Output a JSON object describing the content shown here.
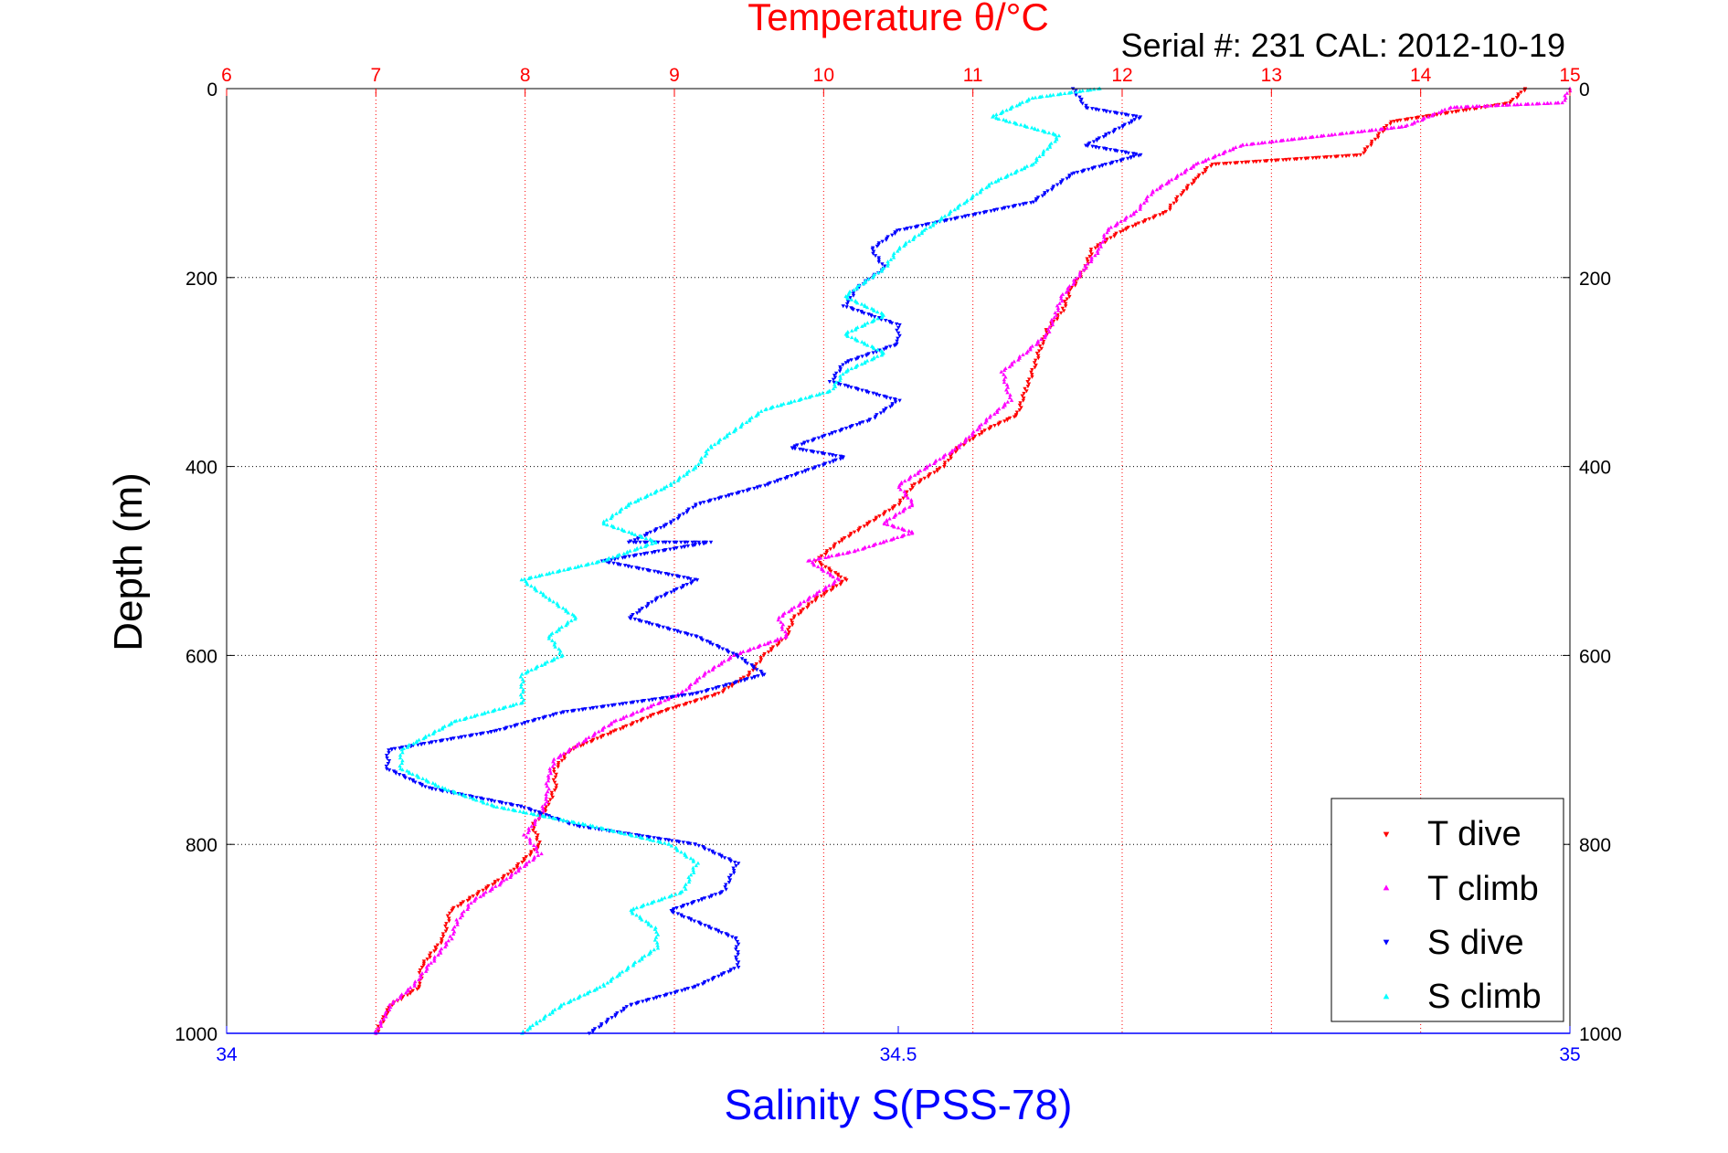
{
  "chart_data": {
    "type": "scatter",
    "title": "Temperature θ/°C",
    "subtitle": "Serial #: 231  CAL: 2012-10-19",
    "ylabel": "Depth (m)",
    "xlabel": "Salinity S(PSS-78)",
    "top_axis": {
      "label": "Temperature θ/°C",
      "range": [
        6,
        15
      ],
      "ticks": [
        "6",
        "7",
        "8",
        "9",
        "10",
        "11",
        "12",
        "13",
        "14",
        "15"
      ],
      "color": "#ff0000"
    },
    "bottom_axis": {
      "label": "Salinity S(PSS-78)",
      "range": [
        34,
        35
      ],
      "ticks": [
        "34",
        "34.5",
        "35"
      ],
      "color": "#0000ff"
    },
    "y_axis": {
      "range": [
        0,
        1000
      ],
      "reversed": true,
      "ticks": [
        "0",
        "200",
        "400",
        "600",
        "800",
        "1000"
      ]
    },
    "grid": true,
    "legend_position": "bottom-right",
    "legend": [
      {
        "label": "T dive",
        "color": "#ff0000",
        "marker": "triangle-down"
      },
      {
        "label": "T climb",
        "color": "#ff00ff",
        "marker": "triangle-up"
      },
      {
        "label": "S dive",
        "color": "#0000ff",
        "marker": "triangle-down"
      },
      {
        "label": "S climb",
        "color": "#00ffff",
        "marker": "triangle-up"
      }
    ],
    "series": [
      {
        "name": "T dive",
        "axis": "temperature",
        "color": "#ff0000",
        "points": [
          [
            14.7,
            0
          ],
          [
            14.6,
            15
          ],
          [
            13.8,
            35
          ],
          [
            13.6,
            70
          ],
          [
            12.6,
            80
          ],
          [
            12.5,
            95
          ],
          [
            12.4,
            110
          ],
          [
            12.3,
            130
          ],
          [
            12.0,
            150
          ],
          [
            11.8,
            170
          ],
          [
            11.75,
            190
          ],
          [
            11.65,
            215
          ],
          [
            11.6,
            235
          ],
          [
            11.5,
            255
          ],
          [
            11.45,
            275
          ],
          [
            11.4,
            300
          ],
          [
            11.35,
            320
          ],
          [
            11.3,
            345
          ],
          [
            11.1,
            360
          ],
          [
            10.9,
            380
          ],
          [
            10.8,
            400
          ],
          [
            10.6,
            420
          ],
          [
            10.5,
            440
          ],
          [
            10.3,
            460
          ],
          [
            10.1,
            480
          ],
          [
            9.95,
            500
          ],
          [
            10.15,
            520
          ],
          [
            9.95,
            540
          ],
          [
            9.8,
            560
          ],
          [
            9.75,
            580
          ],
          [
            9.6,
            600
          ],
          [
            9.5,
            620
          ],
          [
            9.3,
            640
          ],
          [
            8.9,
            660
          ],
          [
            8.6,
            680
          ],
          [
            8.3,
            700
          ],
          [
            8.2,
            720
          ],
          [
            8.2,
            740
          ],
          [
            8.15,
            760
          ],
          [
            8.05,
            780
          ],
          [
            8.1,
            800
          ],
          [
            7.9,
            830
          ],
          [
            7.7,
            850
          ],
          [
            7.5,
            870
          ],
          [
            7.45,
            900
          ],
          [
            7.3,
            930
          ],
          [
            7.3,
            950
          ],
          [
            7.1,
            970
          ],
          [
            7.0,
            1000
          ]
        ]
      },
      {
        "name": "T climb",
        "axis": "temperature",
        "color": "#ff00ff",
        "points": [
          [
            15.0,
            0
          ],
          [
            14.95,
            15
          ],
          [
            14.2,
            20
          ],
          [
            13.9,
            40
          ],
          [
            12.8,
            60
          ],
          [
            12.5,
            80
          ],
          [
            12.2,
            110
          ],
          [
            12.1,
            130
          ],
          [
            11.9,
            150
          ],
          [
            11.85,
            170
          ],
          [
            11.75,
            190
          ],
          [
            11.6,
            220
          ],
          [
            11.55,
            240
          ],
          [
            11.5,
            260
          ],
          [
            11.35,
            280
          ],
          [
            11.2,
            300
          ],
          [
            11.25,
            330
          ],
          [
            11.1,
            350
          ],
          [
            10.9,
            380
          ],
          [
            10.7,
            400
          ],
          [
            10.5,
            420
          ],
          [
            10.6,
            440
          ],
          [
            10.4,
            460
          ],
          [
            10.6,
            470
          ],
          [
            10.2,
            490
          ],
          [
            9.9,
            500
          ],
          [
            10.1,
            520
          ],
          [
            9.9,
            540
          ],
          [
            9.7,
            560
          ],
          [
            9.75,
            580
          ],
          [
            9.4,
            600
          ],
          [
            9.2,
            620
          ],
          [
            9.05,
            640
          ],
          [
            8.9,
            650
          ],
          [
            8.6,
            670
          ],
          [
            8.4,
            690
          ],
          [
            8.2,
            710
          ],
          [
            8.15,
            730
          ],
          [
            8.15,
            750
          ],
          [
            8.1,
            770
          ],
          [
            8.0,
            790
          ],
          [
            8.1,
            810
          ],
          [
            7.85,
            840
          ],
          [
            7.65,
            860
          ],
          [
            7.55,
            880
          ],
          [
            7.5,
            900
          ],
          [
            7.35,
            930
          ],
          [
            7.25,
            950
          ],
          [
            7.1,
            970
          ],
          [
            7.0,
            1000
          ]
        ]
      },
      {
        "name": "S dive",
        "axis": "salinity",
        "color": "#0000ff",
        "points": [
          [
            34.63,
            0
          ],
          [
            34.64,
            20
          ],
          [
            34.68,
            30
          ],
          [
            34.64,
            60
          ],
          [
            34.68,
            70
          ],
          [
            34.63,
            90
          ],
          [
            34.6,
            120
          ],
          [
            34.5,
            150
          ],
          [
            34.48,
            170
          ],
          [
            34.49,
            190
          ],
          [
            34.47,
            210
          ],
          [
            34.46,
            230
          ],
          [
            34.5,
            250
          ],
          [
            34.5,
            270
          ],
          [
            34.46,
            290
          ],
          [
            34.45,
            310
          ],
          [
            34.5,
            330
          ],
          [
            34.48,
            350
          ],
          [
            34.42,
            380
          ],
          [
            34.46,
            390
          ],
          [
            34.4,
            420
          ],
          [
            34.35,
            440
          ],
          [
            34.33,
            460
          ],
          [
            34.3,
            480
          ],
          [
            34.36,
            480
          ],
          [
            34.28,
            500
          ],
          [
            34.35,
            520
          ],
          [
            34.32,
            540
          ],
          [
            34.3,
            560
          ],
          [
            34.35,
            580
          ],
          [
            34.38,
            600
          ],
          [
            34.4,
            620
          ],
          [
            34.35,
            640
          ],
          [
            34.25,
            660
          ],
          [
            34.2,
            680
          ],
          [
            34.12,
            700
          ],
          [
            34.12,
            720
          ],
          [
            34.15,
            740
          ],
          [
            34.22,
            760
          ],
          [
            34.26,
            780
          ],
          [
            34.35,
            800
          ],
          [
            34.38,
            820
          ],
          [
            34.37,
            850
          ],
          [
            34.33,
            870
          ],
          [
            34.38,
            900
          ],
          [
            34.38,
            930
          ],
          [
            34.35,
            950
          ],
          [
            34.3,
            970
          ],
          [
            34.28,
            990
          ],
          [
            34.27,
            1000
          ]
        ]
      },
      {
        "name": "S climb",
        "axis": "salinity",
        "color": "#00ffff",
        "points": [
          [
            34.65,
            0
          ],
          [
            34.6,
            10
          ],
          [
            34.57,
            30
          ],
          [
            34.62,
            50
          ],
          [
            34.6,
            80
          ],
          [
            34.57,
            100
          ],
          [
            34.55,
            120
          ],
          [
            34.52,
            150
          ],
          [
            34.5,
            170
          ],
          [
            34.49,
            190
          ],
          [
            34.46,
            220
          ],
          [
            34.49,
            240
          ],
          [
            34.46,
            260
          ],
          [
            34.49,
            280
          ],
          [
            34.46,
            300
          ],
          [
            34.45,
            320
          ],
          [
            34.4,
            340
          ],
          [
            34.38,
            360
          ],
          [
            34.36,
            380
          ],
          [
            34.35,
            400
          ],
          [
            34.33,
            420
          ],
          [
            34.3,
            440
          ],
          [
            34.28,
            460
          ],
          [
            34.32,
            480
          ],
          [
            34.28,
            500
          ],
          [
            34.22,
            520
          ],
          [
            34.24,
            540
          ],
          [
            34.26,
            560
          ],
          [
            34.24,
            580
          ],
          [
            34.25,
            600
          ],
          [
            34.22,
            620
          ],
          [
            34.22,
            650
          ],
          [
            34.17,
            670
          ],
          [
            34.13,
            700
          ],
          [
            34.13,
            720
          ],
          [
            34.16,
            740
          ],
          [
            34.2,
            760
          ],
          [
            34.27,
            780
          ],
          [
            34.33,
            800
          ],
          [
            34.35,
            820
          ],
          [
            34.34,
            850
          ],
          [
            34.3,
            870
          ],
          [
            34.32,
            890
          ],
          [
            34.32,
            910
          ],
          [
            34.3,
            930
          ],
          [
            34.28,
            950
          ],
          [
            34.25,
            970
          ],
          [
            34.23,
            990
          ],
          [
            34.22,
            1000
          ]
        ]
      }
    ]
  }
}
